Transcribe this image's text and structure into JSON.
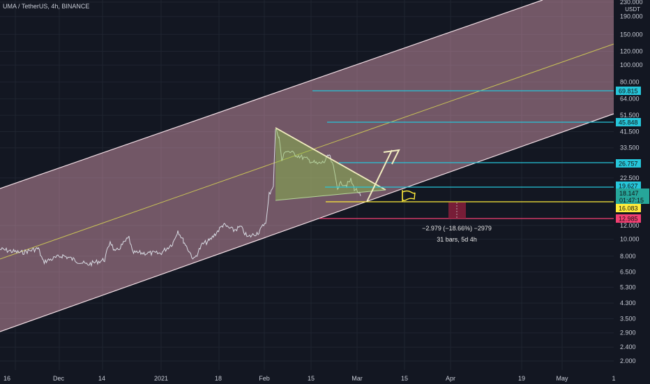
{
  "header": {
    "title": "UMA / TetherUS, 4h, BINANCE",
    "currency": "USDT"
  },
  "chart_data": {
    "type": "line",
    "log_scale": true,
    "y_ticks": [
      "230.000",
      "190.000",
      "150.000",
      "120.000",
      "100.000",
      "80.000",
      "64.000",
      "51.500",
      "41.500",
      "33.500",
      "22.500",
      "12.000",
      "10.000",
      "8.000",
      "6.500",
      "5.300",
      "4.300",
      "3.500",
      "2.900",
      "2.400",
      "2.000"
    ],
    "x_ticks": [
      "16",
      "Dec",
      "14",
      "2021",
      "18",
      "Feb",
      "15",
      "Mar",
      "15",
      "Apr",
      "19",
      "May",
      "1"
    ],
    "price_tags": [
      {
        "value": "69.815",
        "color": "#26c6da"
      },
      {
        "value": "45.848",
        "color": "#26c6da"
      },
      {
        "value": "26.757",
        "color": "#26c6da"
      },
      {
        "value": "19.627",
        "color": "#26c6da"
      },
      {
        "value": "16.083",
        "color": "#ffeb3b"
      },
      {
        "value": "12.985",
        "color": "#f23f72"
      }
    ],
    "current_price": {
      "value": "18.147",
      "countdown": "01:47:15",
      "color": "#26a69a"
    },
    "measure": {
      "line1": "−2.979 (−18.66%) −2979",
      "line2": "31 bars, 5d 4h"
    },
    "channel_color": "#f5b0c5",
    "midline_color": "#c9c257",
    "triangle_color": "#8bc34a",
    "colors": {
      "level": "#26c6da",
      "support": "#ffeb3b",
      "stop": "#f23f72",
      "price": "#26a69a"
    }
  }
}
